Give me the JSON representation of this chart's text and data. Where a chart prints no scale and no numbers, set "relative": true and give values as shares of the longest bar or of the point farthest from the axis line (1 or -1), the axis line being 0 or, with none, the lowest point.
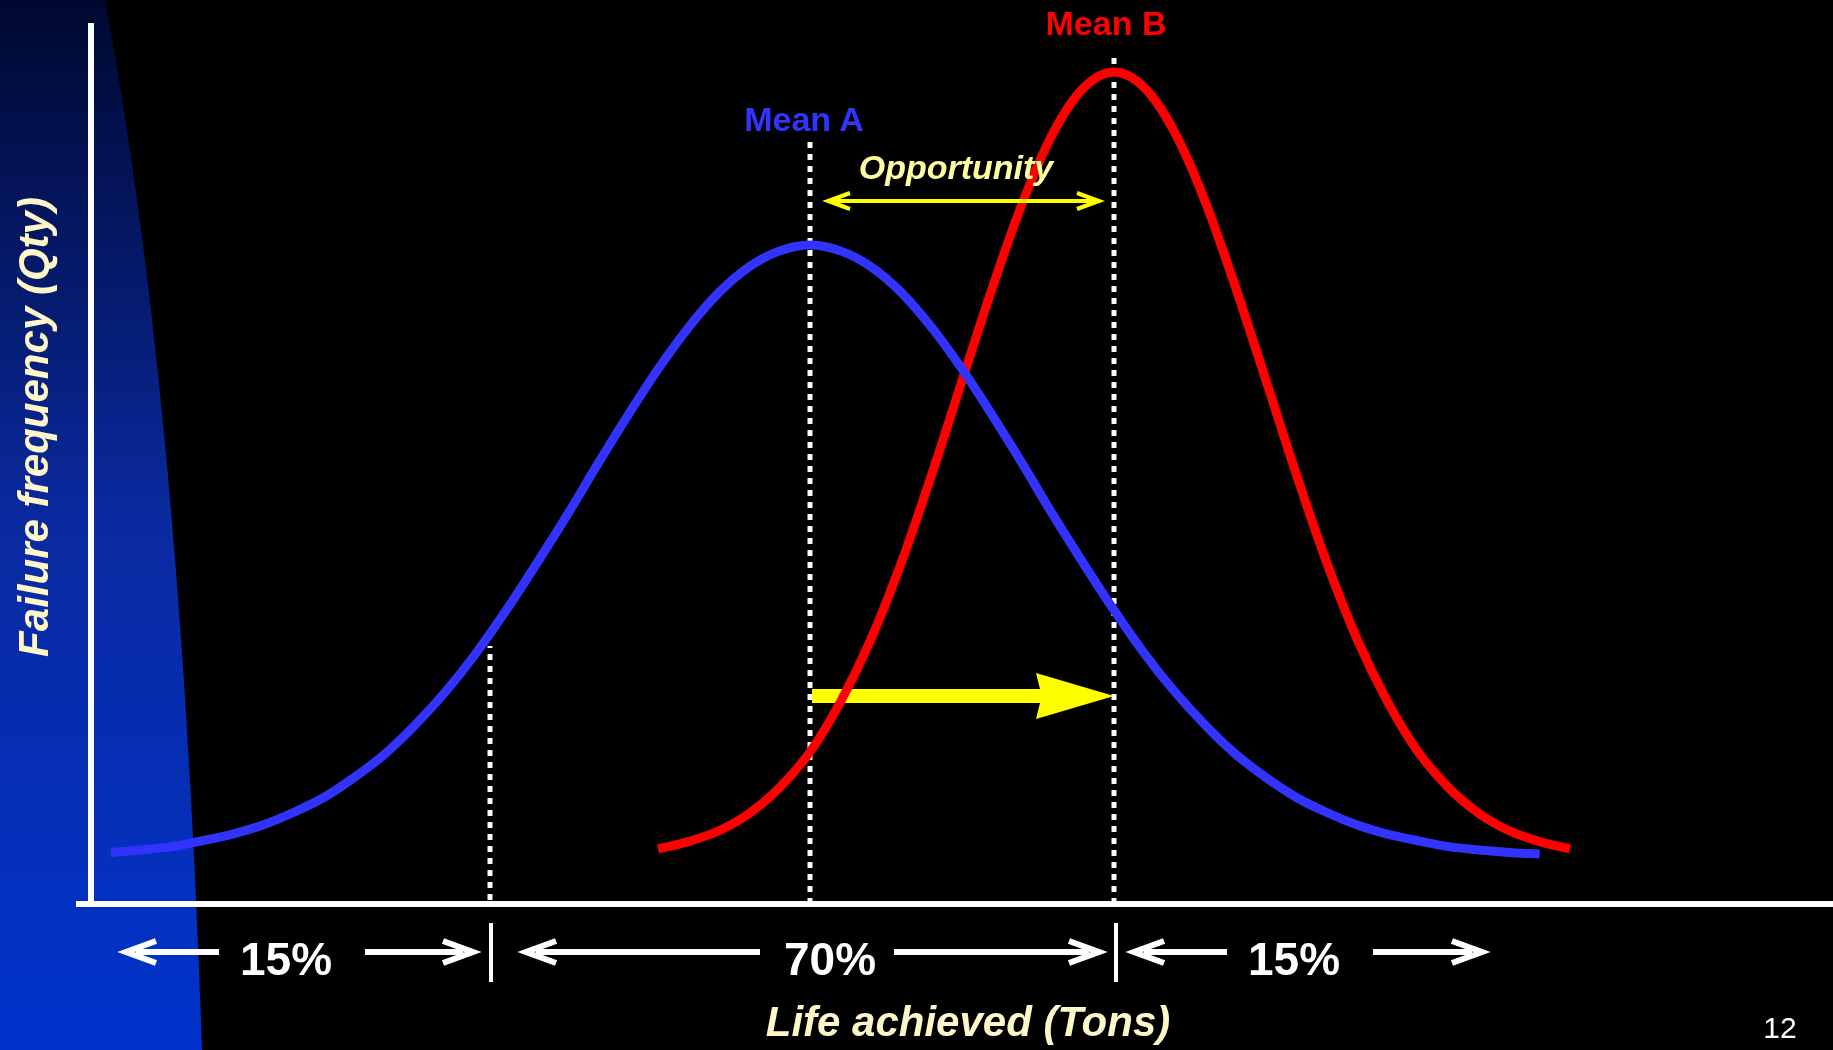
{
  "chart_data": {
    "type": "line",
    "relative": true,
    "xlabel": "Life achieved (Tons)",
    "ylabel": "Failure frequency (Qty)",
    "categories": [
      null,
      null,
      null,
      null,
      null,
      null,
      null,
      null,
      null,
      null,
      null,
      null,
      null,
      null,
      null,
      null,
      null,
      null,
      null,
      null,
      null,
      null,
      null,
      null,
      null,
      null,
      null,
      null,
      null,
      null,
      null,
      null,
      null,
      null,
      null,
      null,
      null,
      null,
      null,
      null,
      null,
      null,
      null,
      null,
      null,
      null,
      null,
      null,
      null
    ],
    "series": [
      {
        "color": "#3333ff",
        "values": [
          0.062,
          0.065,
          0.069,
          0.076,
          0.084,
          0.095,
          0.11,
          0.128,
          0.152,
          0.18,
          0.215,
          0.255,
          0.301,
          0.353,
          0.409,
          0.467,
          0.528,
          0.587,
          0.643,
          0.693,
          0.735,
          0.766,
          0.785,
          0.792,
          0.785,
          0.766,
          0.735,
          0.693,
          0.643,
          0.587,
          0.528,
          0.467,
          0.409,
          0.353,
          0.301,
          0.255,
          0.215,
          0.18,
          0.152,
          0.128,
          0.11,
          0.095,
          0.084,
          0.076,
          0.069,
          0.065,
          0.062,
          0.06,
          null
        ]
      },
      {
        "color": "#ff0000",
        "values": [
          null,
          null,
          null,
          null,
          null,
          null,
          null,
          null,
          null,
          null,
          null,
          null,
          null,
          null,
          null,
          null,
          null,
          null,
          0.066,
          0.075,
          0.088,
          0.109,
          0.14,
          0.183,
          0.243,
          0.318,
          0.41,
          0.516,
          0.629,
          0.741,
          0.844,
          0.927,
          0.981,
          1.0,
          0.981,
          0.927,
          0.844,
          0.741,
          0.629,
          0.516,
          0.41,
          0.318,
          0.243,
          0.183,
          0.14,
          0.109,
          0.088,
          0.075,
          0.066
        ]
      }
    ],
    "annotations": [
      "Mean A",
      "Mean B",
      "Opportunity",
      "15%",
      "70%",
      "15%",
      "12"
    ],
    "legend": false,
    "marker": "none",
    "line_style": "solid"
  }
}
